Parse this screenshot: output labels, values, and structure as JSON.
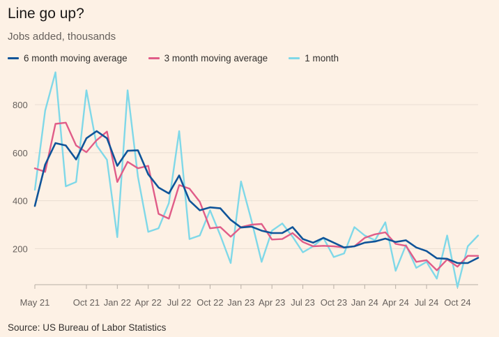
{
  "title": "Line go up?",
  "subtitle": "Jobs added, thousands",
  "source": "Source: US Bureau of Labor Statistics",
  "legend": [
    {
      "label": "6 month moving average",
      "color": "#0f5499"
    },
    {
      "label": "3 month moving average",
      "color": "#e05c88"
    },
    {
      "label": "1 month",
      "color": "#7fd8e8"
    }
  ],
  "chart_data": {
    "type": "line",
    "title": "Line go up?",
    "ylabel": "Jobs added, thousands",
    "x": [
      "May 21",
      "Jun 21",
      "Jul 21",
      "Aug 21",
      "Sep 21",
      "Oct 21",
      "Nov 21",
      "Dec 21",
      "Jan 22",
      "Feb 22",
      "Mar 22",
      "Apr 22",
      "May 22",
      "Jun 22",
      "Jul 22",
      "Aug 22",
      "Sep 22",
      "Oct 22",
      "Nov 22",
      "Dec 22",
      "Jan 23",
      "Feb 23",
      "Mar 23",
      "Apr 23",
      "May 23",
      "Jun 23",
      "Jul 23",
      "Aug 23",
      "Sep 23",
      "Oct 23",
      "Nov 23",
      "Dec 23",
      "Jan 24",
      "Feb 24",
      "Mar 24",
      "Apr 24",
      "May 24",
      "Jun 24",
      "Jul 24",
      "Aug 24",
      "Sep 24",
      "Oct 24",
      "Nov 24",
      "Dec 24"
    ],
    "x_tick_labels": [
      "May 21",
      "Oct 21",
      "Jan 22",
      "Apr 22",
      "Jul 22",
      "Oct 22",
      "Jan 23",
      "Apr 23",
      "Jul 23",
      "Oct 23",
      "Jan 24",
      "Apr 24",
      "Jul 24",
      "Oct 24"
    ],
    "x_tick_months": [
      "May 21",
      "Oct 21",
      "Jan 22",
      "Apr 22",
      "Jul 22",
      "Oct 22",
      "Jan 23",
      "Apr 23",
      "Jul 23",
      "Oct 23",
      "Jan 24",
      "Apr 24",
      "Jul 24",
      "Oct 24"
    ],
    "yticks": [
      200,
      400,
      600,
      800
    ],
    "ylim": [
      50,
      960
    ],
    "grid": true,
    "legend_position": "top",
    "series": [
      {
        "name": "6 month moving average",
        "color": "#0f5499",
        "values": [
          378,
          550,
          640,
          630,
          572,
          660,
          690,
          660,
          545,
          608,
          610,
          510,
          455,
          430,
          505,
          400,
          360,
          372,
          368,
          320,
          288,
          292,
          275,
          265,
          265,
          290,
          240,
          225,
          245,
          225,
          205,
          210,
          225,
          230,
          242,
          228,
          235,
          205,
          190,
          160,
          158,
          140,
          140,
          162
        ]
      },
      {
        "name": "3 month moving average",
        "color": "#e05c88",
        "values": [
          535,
          520,
          720,
          725,
          630,
          602,
          652,
          688,
          478,
          562,
          535,
          545,
          345,
          325,
          465,
          450,
          395,
          285,
          290,
          250,
          290,
          300,
          303,
          238,
          240,
          265,
          228,
          210,
          212,
          210,
          205,
          210,
          245,
          260,
          268,
          220,
          212,
          145,
          152,
          110,
          155,
          125,
          170,
          170
        ]
      },
      {
        "name": "1 month",
        "color": "#7fd8e8",
        "values": [
          445,
          775,
          935,
          460,
          478,
          860,
          630,
          570,
          248,
          860,
          500,
          270,
          285,
          390,
          690,
          240,
          255,
          360,
          255,
          140,
          480,
          320,
          145,
          275,
          305,
          250,
          185,
          210,
          245,
          165,
          180,
          290,
          255,
          235,
          310,
          108,
          215,
          120,
          145,
          75,
          255,
          40,
          210,
          255
        ]
      }
    ]
  }
}
